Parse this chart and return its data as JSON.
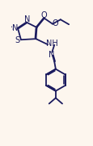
{
  "bg_color": "#fdf6ee",
  "line_color": "#1a1a5e",
  "line_width": 1.3,
  "font_size": 6.5,
  "figsize": [
    1.16,
    1.81
  ],
  "dpi": 100,
  "xlim": [
    0,
    10
  ],
  "ylim": [
    0,
    16
  ]
}
